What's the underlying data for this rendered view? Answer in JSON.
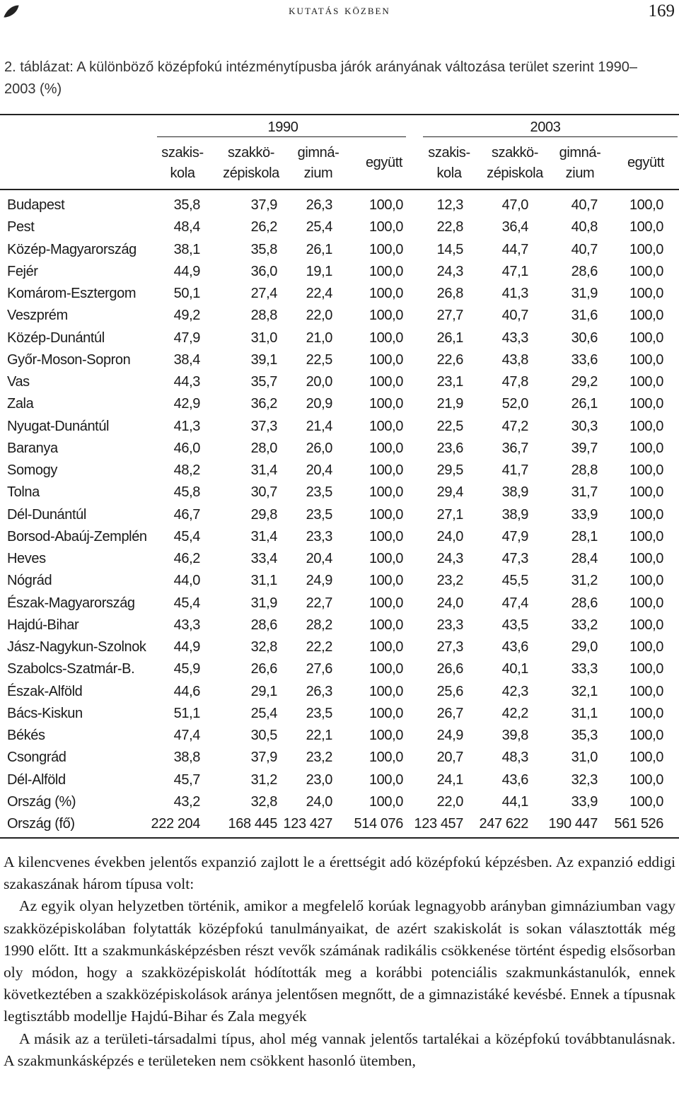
{
  "header": {
    "running_title": "kutatás közben",
    "page_number": "169"
  },
  "caption": "2. táblázat: A különböző középfokú intézménytípusba járók arányának változása terület szerint 1990–2003 (%)",
  "table": {
    "groups": [
      "1990",
      "2003"
    ],
    "columns": [
      [
        "szakis-",
        "kola"
      ],
      [
        "szakkö-",
        "zépiskola"
      ],
      [
        "gimná-",
        "zium"
      ],
      [
        "együtt"
      ],
      [
        "szakis-",
        "kola"
      ],
      [
        "szakkö-",
        "zépiskola"
      ],
      [
        "gimná-",
        "zium"
      ],
      [
        "együtt"
      ]
    ],
    "rows": [
      [
        "Budapest",
        "35,8",
        "37,9",
        "26,3",
        "100,0",
        "12,3",
        "47,0",
        "40,7",
        "100,0"
      ],
      [
        "Pest",
        "48,4",
        "26,2",
        "25,4",
        "100,0",
        "22,8",
        "36,4",
        "40,8",
        "100,0"
      ],
      [
        "Közép-Magyarország",
        "38,1",
        "35,8",
        "26,1",
        "100,0",
        "14,5",
        "44,7",
        "40,7",
        "100,0"
      ],
      [
        "Fejér",
        "44,9",
        "36,0",
        "19,1",
        "100,0",
        "24,3",
        "47,1",
        "28,6",
        "100,0"
      ],
      [
        "Komárom-Esztergom",
        "50,1",
        "27,4",
        "22,4",
        "100,0",
        "26,8",
        "41,3",
        "31,9",
        "100,0"
      ],
      [
        "Veszprém",
        "49,2",
        "28,8",
        "22,0",
        "100,0",
        "27,7",
        "40,7",
        "31,6",
        "100,0"
      ],
      [
        "Közép-Dunántúl",
        "47,9",
        "31,0",
        "21,0",
        "100,0",
        "26,1",
        "43,3",
        "30,6",
        "100,0"
      ],
      [
        "Győr-Moson-Sopron",
        "38,4",
        "39,1",
        "22,5",
        "100,0",
        "22,6",
        "43,8",
        "33,6",
        "100,0"
      ],
      [
        "Vas",
        "44,3",
        "35,7",
        "20,0",
        "100,0",
        "23,1",
        "47,8",
        "29,2",
        "100,0"
      ],
      [
        "Zala",
        "42,9",
        "36,2",
        "20,9",
        "100,0",
        "21,9",
        "52,0",
        "26,1",
        "100,0"
      ],
      [
        "Nyugat-Dunántúl",
        "41,3",
        "37,3",
        "21,4",
        "100,0",
        "22,5",
        "47,2",
        "30,3",
        "100,0"
      ],
      [
        "Baranya",
        "46,0",
        "28,0",
        "26,0",
        "100,0",
        "23,6",
        "36,7",
        "39,7",
        "100,0"
      ],
      [
        "Somogy",
        "48,2",
        "31,4",
        "20,4",
        "100,0",
        "29,5",
        "41,7",
        "28,8",
        "100,0"
      ],
      [
        "Tolna",
        "45,8",
        "30,7",
        "23,5",
        "100,0",
        "29,4",
        "38,9",
        "31,7",
        "100,0"
      ],
      [
        "Dél-Dunántúl",
        "46,7",
        "29,8",
        "23,5",
        "100,0",
        "27,1",
        "38,9",
        "33,9",
        "100,0"
      ],
      [
        "Borsod-Abaúj-Zemplén",
        "45,4",
        "31,4",
        "23,3",
        "100,0",
        "24,0",
        "47,9",
        "28,1",
        "100,0"
      ],
      [
        "Heves",
        "46,2",
        "33,4",
        "20,4",
        "100,0",
        "24,3",
        "47,3",
        "28,4",
        "100,0"
      ],
      [
        "Nógrád",
        "44,0",
        "31,1",
        "24,9",
        "100,0",
        "23,2",
        "45,5",
        "31,2",
        "100,0"
      ],
      [
        "Észak-Magyarország",
        "45,4",
        "31,9",
        "22,7",
        "100,0",
        "24,0",
        "47,4",
        "28,6",
        "100,0"
      ],
      [
        "Hajdú-Bihar",
        "43,3",
        "28,6",
        "28,2",
        "100,0",
        "23,3",
        "43,5",
        "33,2",
        "100,0"
      ],
      [
        "Jász-Nagykun-Szolnok",
        "44,9",
        "32,8",
        "22,2",
        "100,0",
        "27,3",
        "43,6",
        "29,0",
        "100,0"
      ],
      [
        "Szabolcs-Szatmár-B.",
        "45,9",
        "26,6",
        "27,6",
        "100,0",
        "26,6",
        "40,1",
        "33,3",
        "100,0"
      ],
      [
        "Észak-Alföld",
        "44,6",
        "29,1",
        "26,3",
        "100,0",
        "25,6",
        "42,3",
        "32,1",
        "100,0"
      ],
      [
        "Bács-Kiskun",
        "51,1",
        "25,4",
        "23,5",
        "100,0",
        "26,7",
        "42,2",
        "31,1",
        "100,0"
      ],
      [
        "Békés",
        "47,4",
        "30,5",
        "22,1",
        "100,0",
        "24,9",
        "39,8",
        "35,3",
        "100,0"
      ],
      [
        "Csongrád",
        "38,8",
        "37,9",
        "23,2",
        "100,0",
        "20,7",
        "48,3",
        "31,0",
        "100,0"
      ],
      [
        "Dél-Alföld",
        "45,7",
        "31,2",
        "23,0",
        "100,0",
        "24,1",
        "43,6",
        "32,3",
        "100,0"
      ],
      [
        "Ország (%)",
        "43,2",
        "32,8",
        "24,0",
        "100,0",
        "22,0",
        "44,1",
        "33,9",
        "100,0"
      ],
      [
        "Ország (fő)",
        "222 204",
        "168 445",
        "123 427",
        "514 076",
        "123 457",
        "247 622",
        "190 447",
        "561 526"
      ]
    ]
  },
  "paragraphs": [
    "A kilencvenes években jelentős expanzió zajlott le a érettségit adó középfokú képzésben. Az expanzió eddigi szakaszának három típusa volt:",
    "Az egyik olyan helyzetben történik, amikor a megfelelő korúak legnagyobb arányban gimnáziumban vagy szakközépiskolában folytatták középfokú tanulmányaikat, de azért szakiskolát is sokan választották még 1990 előtt. Itt a szakmunkásképzésben részt vevők számának radikális csökkenése történt éspedig elsősorban oly módon, hogy a szakközépiskolát hódították meg a korábbi potenciális szakmunkástanulók, ennek következtében a szakközépiskolások aránya jelentősen megnőtt, de a gimnazistáké kevésbé. Ennek a típusnak legtisztább modellje Hajdú-Bihar és Zala megyék",
    "A másik az a területi-társadalmi típus, ahol még vannak jelentős tartalékai a középfokú továbbtanulásnak. A szakmunkásképzés e területeken nem csökkent hasonló ütemben,"
  ]
}
